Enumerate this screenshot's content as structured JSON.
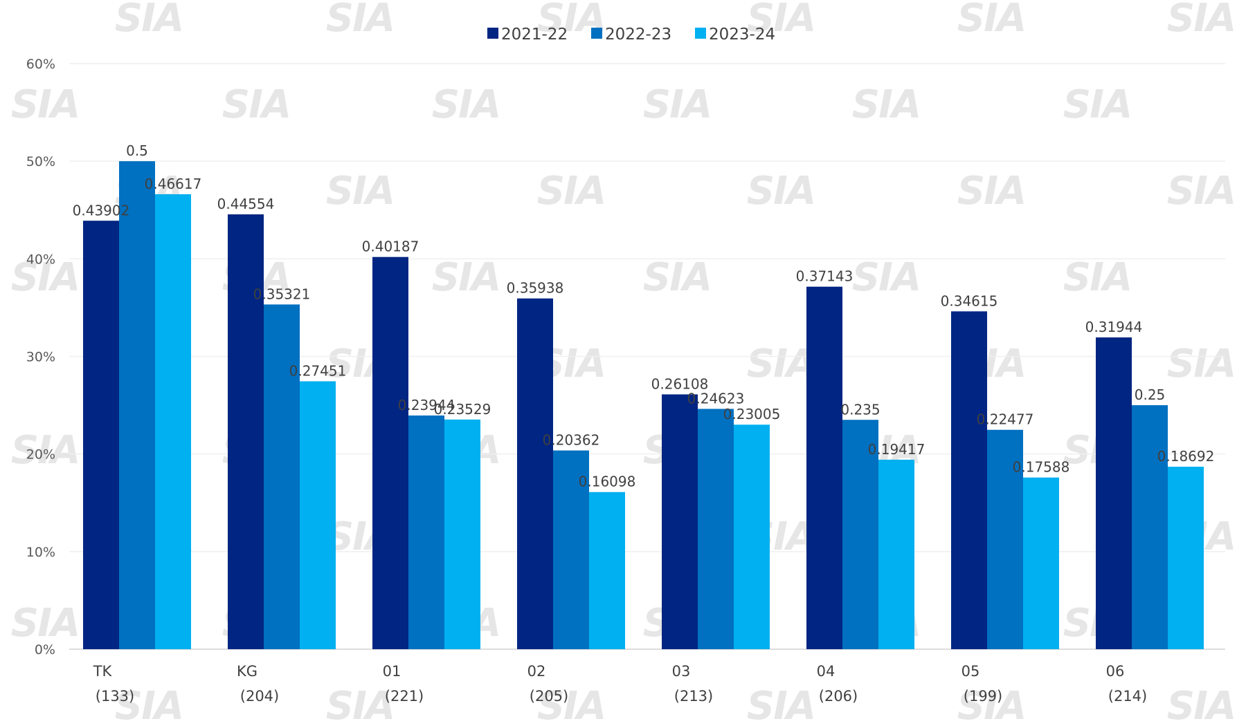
{
  "watermark_text": "SIA",
  "chart_data": {
    "type": "bar",
    "categories": [
      "TK",
      "KG",
      "01",
      "02",
      "03",
      "04",
      "05",
      "06"
    ],
    "category_counts": [
      "(133)",
      "(204)",
      "(221)",
      "(205)",
      "(213)",
      "(206)",
      "(199)",
      "(214)"
    ],
    "series": [
      {
        "name": "2021-22",
        "color": "#002582",
        "values": [
          0.43902,
          0.44554,
          0.40187,
          0.35938,
          0.26108,
          0.37143,
          0.34615,
          0.31944
        ]
      },
      {
        "name": "2022-23",
        "color": "#0070C0",
        "values": [
          0.5,
          0.35321,
          0.23944,
          0.20362,
          0.24623,
          0.235,
          0.22477,
          0.25
        ]
      },
      {
        "name": "2023-24",
        "color": "#00B0F0",
        "values": [
          0.46617,
          0.27451,
          0.23529,
          0.16098,
          0.23005,
          0.19417,
          0.17588,
          0.18692
        ]
      }
    ],
    "value_labels": [
      [
        "0.43902",
        "0.44554",
        "0.40187",
        "0.35938",
        "0.26108",
        "0.37143",
        "0.34615",
        "0.31944"
      ],
      [
        "0.5",
        "0.35321",
        "0.23944",
        "0.20362",
        "0.24623",
        "0.235",
        "0.22477",
        "0.25"
      ],
      [
        "0.46617",
        "0.27451",
        "0.23529",
        "0.16098",
        "0.23005",
        "0.19417",
        "0.17588",
        "0.18692"
      ]
    ],
    "ylim": [
      0,
      0.6
    ],
    "yticks": [
      0,
      0.1,
      0.2,
      0.3,
      0.4,
      0.5,
      0.6
    ],
    "ytick_labels": [
      "0%",
      "10%",
      "20%",
      "30%",
      "40%",
      "50%",
      "60%"
    ],
    "grid": true,
    "legend_position": "top-center"
  }
}
